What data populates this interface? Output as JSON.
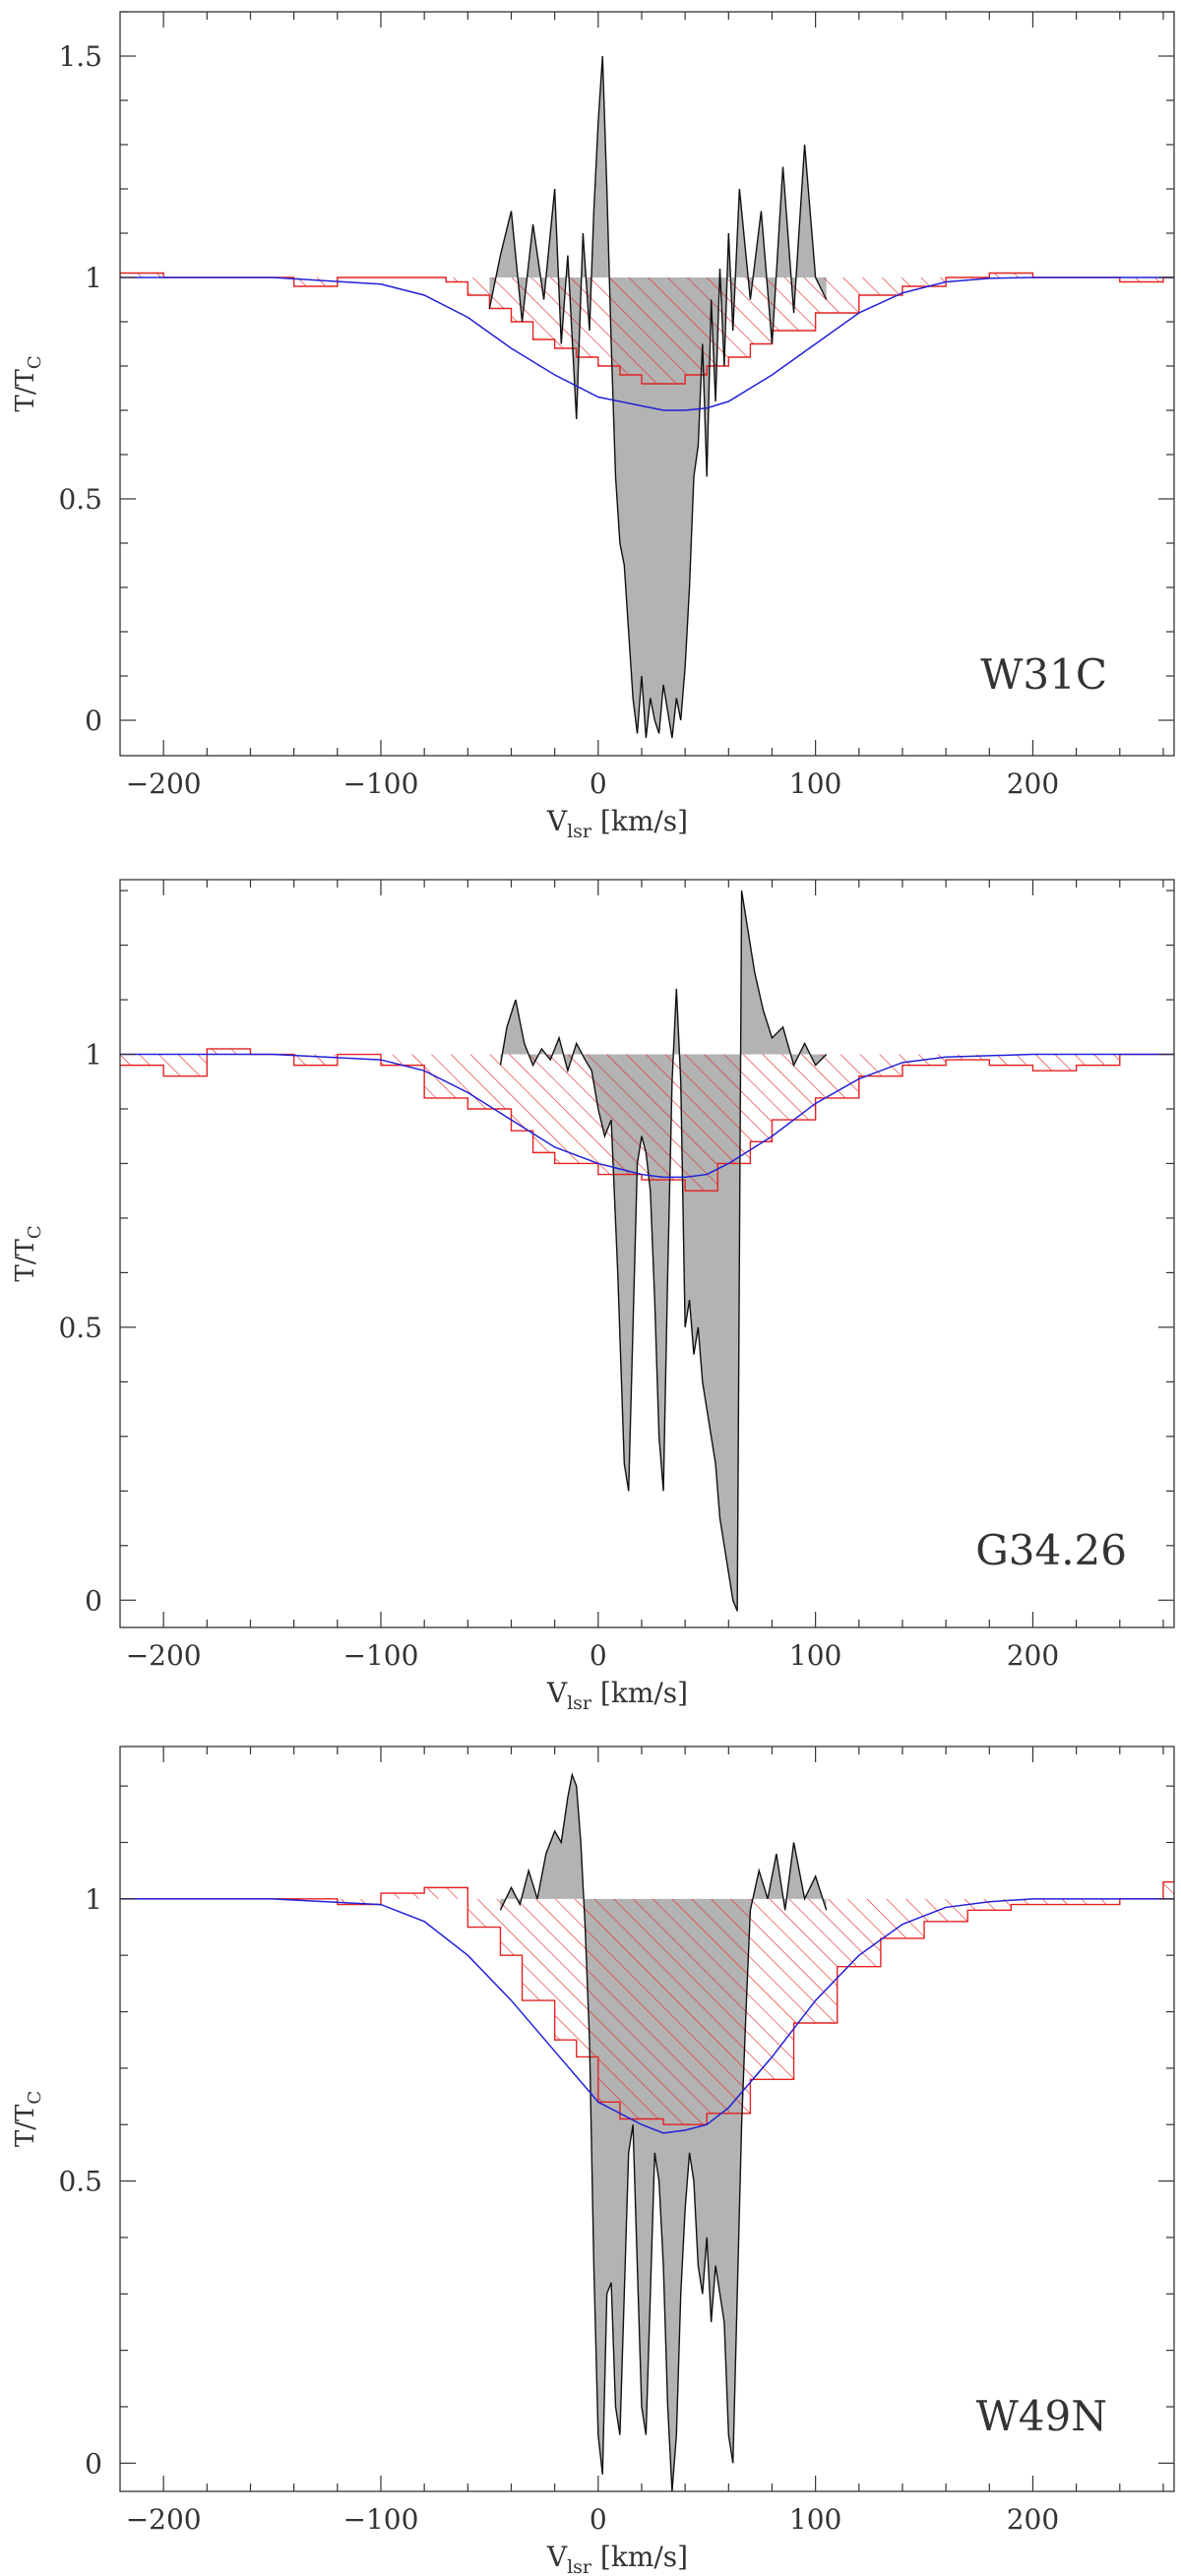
{
  "chart_data": [
    {
      "type": "line",
      "label": "W31C",
      "xlabel": "V",
      "xlabel_sub": "lsr",
      "xlabel_unit": " [km/s]",
      "ylabel": "T/T",
      "ylabel_sub": "C",
      "xlim": [
        -220,
        265
      ],
      "ylim": [
        -0.08,
        1.6
      ],
      "xticks": [
        -200,
        -100,
        0,
        100,
        200
      ],
      "yticks": [
        0,
        0.5,
        1,
        1.5
      ],
      "ytick_labels": [
        "0",
        "0.5",
        "1",
        "1.5"
      ],
      "colors": {
        "spectrum": "#111111",
        "fill": "#b3b3b3",
        "hist": "#e32222",
        "model": "#2020d8"
      },
      "histogram": {
        "edges": [
          -220,
          -200,
          -180,
          -160,
          -140,
          -120,
          -100,
          -80,
          -70,
          -60,
          -50,
          -40,
          -30,
          -20,
          -10,
          0,
          10,
          20,
          30,
          40,
          50,
          60,
          70,
          80,
          100,
          120,
          140,
          160,
          180,
          200,
          220,
          240,
          260,
          265
        ],
        "values": [
          1.01,
          1.0,
          1.0,
          1.0,
          0.98,
          1.0,
          1.0,
          1.0,
          0.99,
          0.96,
          0.93,
          0.9,
          0.86,
          0.84,
          0.82,
          0.8,
          0.78,
          0.76,
          0.76,
          0.78,
          0.8,
          0.82,
          0.85,
          0.88,
          0.92,
          0.96,
          0.98,
          1.0,
          1.01,
          1.0,
          1.0,
          0.99,
          1.0
        ]
      },
      "model": {
        "x": [
          -220,
          -150,
          -100,
          -80,
          -60,
          -40,
          -20,
          0,
          20,
          30,
          40,
          50,
          60,
          80,
          100,
          120,
          140,
          160,
          180,
          200,
          265
        ],
        "y": [
          1.0,
          1.0,
          0.985,
          0.96,
          0.91,
          0.84,
          0.78,
          0.73,
          0.71,
          0.7,
          0.7,
          0.705,
          0.72,
          0.78,
          0.85,
          0.92,
          0.965,
          0.99,
          0.998,
          1.0,
          1.0
        ]
      },
      "spectrum": {
        "x": [
          -50,
          -45,
          -40,
          -35,
          -30,
          -25,
          -20,
          -17,
          -14,
          -10,
          -7,
          -4,
          -2,
          0,
          2,
          4,
          6,
          8,
          10,
          12,
          14,
          16,
          18,
          20,
          22,
          24,
          26,
          28,
          30,
          32,
          34,
          36,
          38,
          40,
          42,
          44,
          46,
          48,
          50,
          52,
          54,
          56,
          58,
          60,
          62,
          65,
          70,
          75,
          80,
          85,
          90,
          95,
          100,
          105
        ],
        "y": [
          0.93,
          1.05,
          1.15,
          0.9,
          1.12,
          0.95,
          1.2,
          0.85,
          1.05,
          0.68,
          1.1,
          0.88,
          1.15,
          1.35,
          1.5,
          1.2,
          0.85,
          0.55,
          0.4,
          0.35,
          0.2,
          0.05,
          -0.03,
          0.1,
          -0.04,
          0.05,
          0.0,
          -0.03,
          0.08,
          0.02,
          -0.04,
          0.05,
          0.0,
          0.12,
          0.3,
          0.55,
          0.62,
          0.85,
          0.55,
          0.95,
          0.72,
          1.02,
          0.8,
          1.1,
          0.88,
          1.2,
          0.95,
          1.15,
          0.85,
          1.25,
          0.92,
          1.3,
          1.0,
          0.95
        ]
      }
    },
    {
      "type": "line",
      "label": "G34.26",
      "xlabel": "V",
      "xlabel_sub": "lsr",
      "xlabel_unit": " [km/s]",
      "ylabel": "T/T",
      "ylabel_sub": "C",
      "xlim": [
        -220,
        265
      ],
      "ylim": [
        -0.05,
        1.32
      ],
      "xticks": [
        -200,
        -100,
        0,
        100,
        200
      ],
      "yticks": [
        0,
        0.5,
        1
      ],
      "ytick_labels": [
        "0",
        "0.5",
        "1"
      ],
      "colors": {
        "spectrum": "#111111",
        "fill": "#b3b3b3",
        "hist": "#e32222",
        "model": "#2020d8"
      },
      "histogram": {
        "edges": [
          -220,
          -200,
          -180,
          -160,
          -140,
          -120,
          -100,
          -80,
          -60,
          -40,
          -30,
          -20,
          0,
          20,
          40,
          55,
          70,
          80,
          100,
          120,
          140,
          160,
          180,
          200,
          220,
          240,
          265
        ],
        "values": [
          0.98,
          0.96,
          1.01,
          1.0,
          0.98,
          1.0,
          0.98,
          0.92,
          0.9,
          0.86,
          0.82,
          0.8,
          0.78,
          0.77,
          0.75,
          0.8,
          0.84,
          0.88,
          0.92,
          0.96,
          0.98,
          0.99,
          0.98,
          0.97,
          0.98,
          1.0
        ]
      },
      "model": {
        "x": [
          -220,
          -150,
          -100,
          -80,
          -60,
          -40,
          -20,
          0,
          20,
          30,
          40,
          50,
          60,
          80,
          100,
          120,
          140,
          160,
          200,
          265
        ],
        "y": [
          1.0,
          1.0,
          0.99,
          0.97,
          0.93,
          0.88,
          0.83,
          0.8,
          0.78,
          0.775,
          0.775,
          0.78,
          0.8,
          0.85,
          0.91,
          0.955,
          0.985,
          0.995,
          1.0,
          1.0
        ]
      },
      "spectrum": {
        "x": [
          -45,
          -42,
          -38,
          -34,
          -30,
          -26,
          -22,
          -18,
          -14,
          -10,
          -6,
          -3,
          0,
          3,
          6,
          9,
          12,
          14,
          16,
          18,
          20,
          22,
          24,
          26,
          28,
          30,
          32,
          34,
          36,
          38,
          40,
          42,
          44,
          46,
          48,
          50,
          52,
          54,
          56,
          58,
          60,
          62,
          64,
          66,
          68,
          72,
          76,
          80,
          85,
          90,
          95,
          100,
          105
        ],
        "y": [
          0.98,
          1.05,
          1.1,
          1.02,
          0.98,
          1.01,
          0.99,
          1.03,
          0.97,
          1.02,
          0.99,
          0.97,
          0.9,
          0.85,
          0.88,
          0.6,
          0.25,
          0.2,
          0.5,
          0.8,
          0.85,
          0.82,
          0.75,
          0.55,
          0.3,
          0.2,
          0.6,
          0.95,
          1.12,
          0.95,
          0.5,
          0.55,
          0.45,
          0.5,
          0.4,
          0.35,
          0.3,
          0.25,
          0.15,
          0.1,
          0.05,
          0.0,
          -0.02,
          1.3,
          1.25,
          1.15,
          1.08,
          1.03,
          1.05,
          0.98,
          1.02,
          0.98,
          1.0
        ]
      }
    },
    {
      "type": "line",
      "label": "W49N",
      "xlabel": "V",
      "xlabel_sub": "lsr",
      "xlabel_unit": " [km/s]",
      "ylabel": "T/T",
      "ylabel_sub": "C",
      "xlim": [
        -220,
        265
      ],
      "ylim": [
        -0.05,
        1.27
      ],
      "xticks": [
        -200,
        -100,
        0,
        100,
        200
      ],
      "yticks": [
        0,
        0.5,
        1
      ],
      "ytick_labels": [
        "0",
        "0.5",
        "1"
      ],
      "colors": {
        "spectrum": "#111111",
        "fill": "#b3b3b3",
        "hist": "#e32222",
        "model": "#2020d8"
      },
      "histogram": {
        "edges": [
          -220,
          -200,
          -180,
          -160,
          -140,
          -120,
          -100,
          -80,
          -60,
          -45,
          -35,
          -20,
          -10,
          0,
          10,
          30,
          50,
          70,
          90,
          110,
          130,
          150,
          170,
          190,
          220,
          240,
          260,
          265
        ],
        "values": [
          1.0,
          1.0,
          1.0,
          1.0,
          1.0,
          0.99,
          1.01,
          1.02,
          0.95,
          0.9,
          0.82,
          0.75,
          0.72,
          0.64,
          0.61,
          0.6,
          0.62,
          0.68,
          0.78,
          0.88,
          0.93,
          0.96,
          0.98,
          0.99,
          0.99,
          1.0,
          1.03
        ]
      },
      "model": {
        "x": [
          -220,
          -150,
          -100,
          -80,
          -60,
          -40,
          -20,
          0,
          20,
          30,
          40,
          50,
          60,
          80,
          100,
          120,
          140,
          160,
          180,
          200,
          265
        ],
        "y": [
          1.0,
          1.0,
          0.99,
          0.96,
          0.9,
          0.82,
          0.73,
          0.64,
          0.6,
          0.585,
          0.59,
          0.6,
          0.63,
          0.72,
          0.82,
          0.9,
          0.955,
          0.985,
          0.995,
          1.0,
          1.0
        ]
      },
      "spectrum": {
        "x": [
          -45,
          -40,
          -36,
          -32,
          -28,
          -24,
          -20,
          -17,
          -14,
          -12,
          -10,
          -8,
          -6,
          -4,
          -2,
          0,
          2,
          4,
          6,
          8,
          10,
          12,
          14,
          16,
          18,
          20,
          22,
          24,
          26,
          28,
          30,
          32,
          34,
          36,
          38,
          40,
          42,
          44,
          46,
          48,
          50,
          52,
          54,
          56,
          58,
          60,
          62,
          64,
          66,
          68,
          70,
          74,
          78,
          82,
          86,
          90,
          95,
          100,
          105
        ],
        "y": [
          0.98,
          1.02,
          0.99,
          1.05,
          1.0,
          1.08,
          1.12,
          1.1,
          1.18,
          1.22,
          1.2,
          1.1,
          0.95,
          0.75,
          0.35,
          0.05,
          -0.02,
          0.3,
          0.32,
          0.1,
          0.05,
          0.3,
          0.55,
          0.6,
          0.35,
          0.1,
          0.05,
          0.3,
          0.55,
          0.5,
          0.35,
          0.1,
          -0.05,
          0.05,
          0.3,
          0.45,
          0.55,
          0.5,
          0.35,
          0.3,
          0.4,
          0.25,
          0.35,
          0.3,
          0.25,
          0.05,
          0.0,
          0.3,
          0.6,
          0.8,
          0.98,
          1.05,
          1.0,
          1.08,
          0.98,
          1.1,
          1.0,
          1.04,
          0.98
        ]
      }
    }
  ]
}
